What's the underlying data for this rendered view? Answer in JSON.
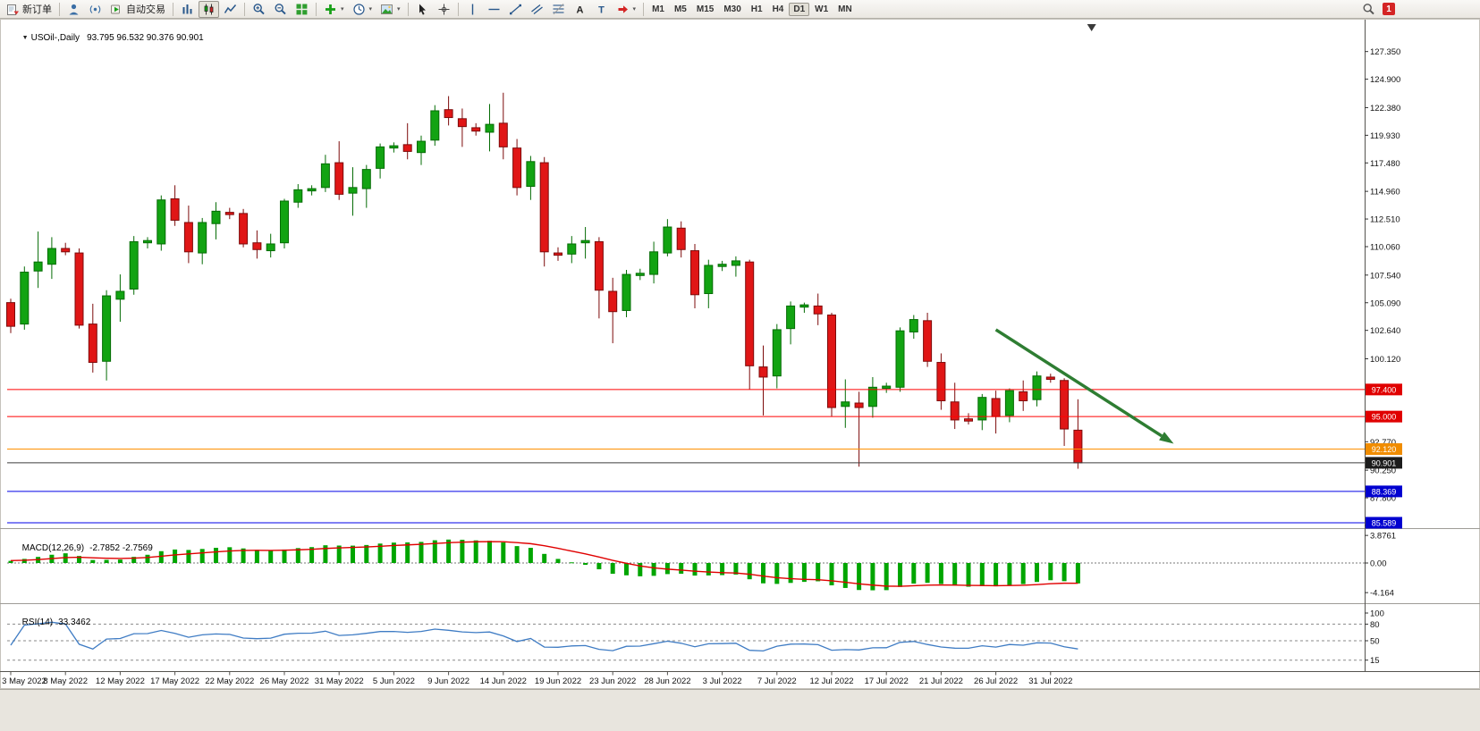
{
  "toolbar": {
    "items": [
      {
        "name": "new-order-button",
        "type": "labeled",
        "icon": "neworder",
        "label": "新订单"
      },
      {
        "type": "sep"
      },
      {
        "name": "expert-advisors-button",
        "type": "icon",
        "icon": "expert"
      },
      {
        "name": "signals-button",
        "type": "icon",
        "icon": "signals"
      },
      {
        "name": "auto-trading-button",
        "type": "labeled",
        "icon": "autotrade",
        "label": "自动交易"
      },
      {
        "type": "sep"
      },
      {
        "name": "bar-chart-button",
        "type": "icon",
        "icon": "barchart"
      },
      {
        "name": "candlestick-chart-button",
        "type": "icon",
        "icon": "candles",
        "active": true
      },
      {
        "name": "line-chart-button",
        "type": "icon",
        "icon": "linechart"
      },
      {
        "type": "sep"
      },
      {
        "name": "zoom-in-button",
        "type": "icon",
        "icon": "zoomin"
      },
      {
        "name": "zoom-out-button",
        "type": "icon",
        "icon": "zoomout"
      },
      {
        "name": "tile-windows-button",
        "type": "icon",
        "icon": "tile"
      },
      {
        "type": "sep"
      },
      {
        "name": "indicators-button",
        "type": "icon",
        "icon": "indicators",
        "dropdown": true
      },
      {
        "name": "periods-button",
        "type": "icon",
        "icon": "clock",
        "dropdown": true
      },
      {
        "name": "templates-button",
        "type": "icon",
        "icon": "template",
        "dropdown": true
      },
      {
        "type": "sep"
      },
      {
        "name": "cursor-button",
        "type": "icon",
        "icon": "cursor"
      },
      {
        "name": "crosshair-button",
        "type": "icon",
        "icon": "crosshair"
      },
      {
        "type": "sep"
      },
      {
        "name": "vertical-line-button",
        "type": "icon",
        "icon": "vline"
      },
      {
        "name": "horizontal-line-button",
        "type": "icon",
        "icon": "hline"
      },
      {
        "name": "trendline-button",
        "type": "icon",
        "icon": "trendline"
      },
      {
        "name": "channel-button",
        "type": "icon",
        "icon": "channel"
      },
      {
        "name": "fibonacci-button",
        "type": "icon",
        "icon": "fibo"
      },
      {
        "name": "text-button",
        "type": "icon",
        "icon": "textA"
      },
      {
        "name": "label-button",
        "type": "icon",
        "icon": "labelT"
      },
      {
        "name": "arrows-button",
        "type": "icon",
        "icon": "arrows",
        "dropdown": true
      },
      {
        "type": "sep"
      }
    ],
    "timeframes": [
      "M1",
      "M5",
      "M15",
      "M30",
      "H1",
      "H4",
      "D1",
      "W1",
      "MN"
    ],
    "active_timeframe": "D1",
    "right": {
      "badge": "1"
    }
  },
  "chart": {
    "header": {
      "marker": "▼",
      "title": "USOil-,Daily",
      "ohlc": "93.795 96.532 90.376 90.901"
    }
  },
  "chart_data": {
    "type": "candlestick",
    "symbol": "USOil-",
    "timeframe": "Daily",
    "current_bar": {
      "open": 93.795,
      "high": 96.532,
      "low": 90.376,
      "close": 90.901
    },
    "dates": [
      "2022-05-03",
      "2022-05-04",
      "2022-05-05",
      "2022-05-06",
      "2022-05-08",
      "2022-05-09",
      "2022-05-10",
      "2022-05-11",
      "2022-05-12",
      "2022-05-13",
      "2022-05-15",
      "2022-05-16",
      "2022-05-17",
      "2022-05-18",
      "2022-05-19",
      "2022-05-20",
      "2022-05-22",
      "2022-05-23",
      "2022-05-24",
      "2022-05-25",
      "2022-05-26",
      "2022-05-27",
      "2022-05-29",
      "2022-05-30",
      "2022-05-31",
      "2022-06-01",
      "2022-06-02",
      "2022-06-03",
      "2022-06-05",
      "2022-06-06",
      "2022-06-07",
      "2022-06-08",
      "2022-06-09",
      "2022-06-10",
      "2022-06-12",
      "2022-06-13",
      "2022-06-14",
      "2022-06-15",
      "2022-06-16",
      "2022-06-17",
      "2022-06-19",
      "2022-06-20",
      "2022-06-21",
      "2022-06-22",
      "2022-06-23",
      "2022-06-24",
      "2022-06-26",
      "2022-06-27",
      "2022-06-28",
      "2022-06-29",
      "2022-06-30",
      "2022-07-01",
      "2022-07-03",
      "2022-07-04",
      "2022-07-05",
      "2022-07-06",
      "2022-07-07",
      "2022-07-08",
      "2022-07-10",
      "2022-07-11",
      "2022-07-12",
      "2022-07-13",
      "2022-07-14",
      "2022-07-15",
      "2022-07-17",
      "2022-07-18",
      "2022-07-19",
      "2022-07-20",
      "2022-07-21",
      "2022-07-22",
      "2022-07-24",
      "2022-07-25",
      "2022-07-26",
      "2022-07-27",
      "2022-07-28",
      "2022-07-29",
      "2022-07-31",
      "2022-08-01",
      "2022-08-02"
    ],
    "ohlc": [
      [
        105.1,
        105.45,
        102.4,
        103.0
      ],
      [
        103.2,
        108.3,
        102.7,
        107.8
      ],
      [
        107.9,
        111.4,
        106.4,
        108.7
      ],
      [
        108.5,
        110.9,
        107.2,
        109.9
      ],
      [
        109.9,
        110.4,
        109.3,
        109.6
      ],
      [
        109.5,
        109.9,
        102.8,
        103.1
      ],
      [
        103.2,
        105.0,
        98.9,
        99.8
      ],
      [
        99.9,
        106.2,
        98.2,
        105.7
      ],
      [
        105.4,
        107.6,
        103.4,
        106.1
      ],
      [
        106.3,
        111.0,
        105.8,
        110.5
      ],
      [
        110.4,
        110.9,
        109.9,
        110.6
      ],
      [
        110.3,
        114.6,
        109.7,
        114.2
      ],
      [
        114.3,
        115.5,
        111.9,
        112.4
      ],
      [
        112.2,
        113.7,
        108.6,
        109.6
      ],
      [
        109.5,
        112.6,
        108.5,
        112.2
      ],
      [
        112.1,
        114.0,
        110.7,
        113.2
      ],
      [
        113.1,
        113.5,
        112.5,
        112.9
      ],
      [
        113.0,
        113.4,
        110.0,
        110.3
      ],
      [
        110.4,
        111.5,
        109.0,
        109.8
      ],
      [
        109.7,
        111.2,
        109.1,
        110.3
      ],
      [
        110.4,
        114.3,
        109.9,
        114.1
      ],
      [
        114.0,
        115.6,
        113.5,
        115.1
      ],
      [
        115.0,
        115.5,
        114.6,
        115.2
      ],
      [
        115.3,
        118.2,
        114.9,
        117.4
      ],
      [
        117.5,
        119.4,
        114.2,
        114.7
      ],
      [
        114.8,
        117.1,
        112.8,
        115.3
      ],
      [
        115.2,
        117.3,
        113.5,
        116.9
      ],
      [
        117.0,
        119.2,
        116.1,
        118.9
      ],
      [
        118.8,
        119.3,
        118.4,
        119.0
      ],
      [
        119.1,
        121.0,
        117.8,
        118.5
      ],
      [
        118.4,
        119.9,
        117.3,
        119.4
      ],
      [
        119.5,
        122.6,
        119.0,
        122.1
      ],
      [
        122.2,
        123.4,
        120.8,
        121.5
      ],
      [
        121.4,
        122.3,
        118.9,
        120.7
      ],
      [
        120.6,
        121.0,
        119.9,
        120.3
      ],
      [
        120.2,
        122.7,
        118.5,
        120.9
      ],
      [
        121.0,
        123.7,
        117.8,
        118.9
      ],
      [
        118.8,
        119.6,
        114.6,
        115.3
      ],
      [
        115.4,
        118.1,
        114.2,
        117.6
      ],
      [
        117.5,
        118.0,
        108.3,
        109.6
      ],
      [
        109.5,
        110.0,
        108.8,
        109.3
      ],
      [
        109.4,
        111.0,
        108.6,
        110.3
      ],
      [
        110.4,
        111.8,
        109.0,
        110.6
      ],
      [
        110.5,
        110.9,
        103.7,
        106.2
      ],
      [
        106.1,
        107.3,
        101.5,
        104.3
      ],
      [
        104.4,
        108.0,
        103.8,
        107.6
      ],
      [
        107.5,
        108.1,
        107.1,
        107.7
      ],
      [
        107.6,
        110.5,
        106.8,
        109.6
      ],
      [
        109.5,
        112.5,
        109.2,
        111.8
      ],
      [
        111.7,
        112.3,
        109.1,
        109.8
      ],
      [
        109.7,
        110.3,
        104.6,
        105.8
      ],
      [
        105.9,
        108.9,
        104.6,
        108.4
      ],
      [
        108.3,
        108.8,
        107.9,
        108.5
      ],
      [
        108.4,
        109.2,
        107.4,
        108.8
      ],
      [
        108.7,
        108.9,
        97.43,
        99.5
      ],
      [
        99.4,
        101.3,
        95.1,
        98.5
      ],
      [
        98.6,
        103.2,
        97.5,
        102.7
      ],
      [
        102.8,
        105.2,
        101.4,
        104.8
      ],
      [
        104.7,
        105.1,
        104.2,
        104.9
      ],
      [
        104.8,
        105.9,
        103.1,
        104.1
      ],
      [
        104.0,
        104.2,
        95.0,
        95.8
      ],
      [
        95.9,
        98.3,
        94.0,
        96.3
      ],
      [
        96.2,
        97.2,
        90.56,
        95.8
      ],
      [
        95.9,
        98.5,
        94.9,
        97.6
      ],
      [
        97.5,
        98.0,
        97.1,
        97.7
      ],
      [
        97.6,
        102.9,
        97.2,
        102.6
      ],
      [
        102.5,
        104.0,
        101.9,
        103.6
      ],
      [
        103.5,
        104.2,
        99.4,
        99.9
      ],
      [
        99.8,
        100.6,
        95.6,
        96.4
      ],
      [
        96.3,
        98.0,
        93.9,
        94.7
      ],
      [
        94.8,
        95.3,
        94.3,
        94.6
      ],
      [
        94.7,
        97.0,
        93.8,
        96.7
      ],
      [
        96.6,
        97.3,
        93.5,
        95.0
      ],
      [
        95.1,
        97.5,
        94.5,
        97.3
      ],
      [
        97.2,
        98.2,
        95.5,
        96.4
      ],
      [
        96.5,
        99.0,
        95.9,
        98.6
      ],
      [
        98.5,
        98.8,
        98.0,
        98.3
      ],
      [
        98.2,
        98.4,
        92.4,
        93.9
      ],
      [
        93.795,
        96.532,
        90.376,
        90.901
      ]
    ],
    "y_axis": {
      "ticks": [
        127.35,
        124.9,
        122.38,
        119.93,
        117.48,
        114.96,
        112.51,
        110.06,
        107.54,
        105.09,
        102.64,
        100.12,
        92.77,
        90.25,
        87.8,
        85.35
      ],
      "price_lines": [
        {
          "price": 97.4,
          "label": "97.400",
          "line_color": "#FF0000",
          "badge_color": "#E00000"
        },
        {
          "price": 95.0,
          "label": "95.000",
          "line_color": "#FF0000",
          "badge_color": "#E00000"
        },
        {
          "price": 92.12,
          "label": "92.120",
          "line_color": "#FF9000",
          "badge_color": "#F08C00"
        },
        {
          "price": 90.901,
          "label": "90.901",
          "line_color": "#3C3C3C",
          "badge_color": "#1C1C1C"
        },
        {
          "price": 88.369,
          "label": "88.369",
          "line_color": "#0000E8",
          "badge_color": "#0000D0"
        },
        {
          "price": 85.589,
          "label": "85.589",
          "line_color": "#0000E8",
          "badge_color": "#0000D0"
        }
      ]
    },
    "x_axis": {
      "labels": [
        {
          "i": 0,
          "t": "3 May 2022"
        },
        {
          "i": 4,
          "t": "8 May 2022"
        },
        {
          "i": 8,
          "t": "12 May 2022"
        },
        {
          "i": 12,
          "t": "17 May 2022"
        },
        {
          "i": 16,
          "t": "22 May 2022"
        },
        {
          "i": 20,
          "t": "26 May 2022"
        },
        {
          "i": 24,
          "t": "31 May 2022"
        },
        {
          "i": 28,
          "t": "5 Jun 2022"
        },
        {
          "i": 32,
          "t": "9 Jun 2022"
        },
        {
          "i": 36,
          "t": "14 Jun 2022"
        },
        {
          "i": 40,
          "t": "19 Jun 2022"
        },
        {
          "i": 44,
          "t": "23 Jun 2022"
        },
        {
          "i": 48,
          "t": "28 Jun 2022"
        },
        {
          "i": 52,
          "t": "3 Jul 2022"
        },
        {
          "i": 56,
          "t": "7 Jul 2022"
        },
        {
          "i": 60,
          "t": "12 Jul 2022"
        },
        {
          "i": 64,
          "t": "17 Jul 2022"
        },
        {
          "i": 68,
          "t": "21 Jul 2022"
        },
        {
          "i": 72,
          "t": "26 Jul 2022"
        },
        {
          "i": 76,
          "t": "31 Jul 2022"
        }
      ]
    },
    "annotations": [
      {
        "type": "trend-arrow",
        "color": "#2E7D32",
        "from": {
          "bar": 72,
          "price": 102.7
        },
        "to": {
          "bar": 85,
          "price": 92.6
        }
      }
    ],
    "indicators": [
      {
        "type": "MACD",
        "params": [
          12,
          26,
          9
        ],
        "label": "MACD(12,26,9)",
        "values_text": "-2.7852 -2.7569",
        "scale_labels": [
          "3.8761",
          "0.00",
          "-4.164"
        ],
        "histogram_color": "#00A500",
        "signal_color": "#E00000"
      },
      {
        "type": "RSI",
        "params": [
          14
        ],
        "label": "RSI(14)",
        "values_text": "33.3462",
        "scale_labels": [
          "100",
          "80",
          "50",
          "15"
        ],
        "levels": [
          80,
          50,
          15
        ],
        "line_color": "#3F7CC4"
      }
    ],
    "colors": {
      "up_fill": "#12A312",
      "up_stroke": "#056C05",
      "down_fill": "#E01616",
      "down_stroke": "#7D0B0B",
      "axis_text": "#111111",
      "grid": "#9e9c97"
    }
  }
}
